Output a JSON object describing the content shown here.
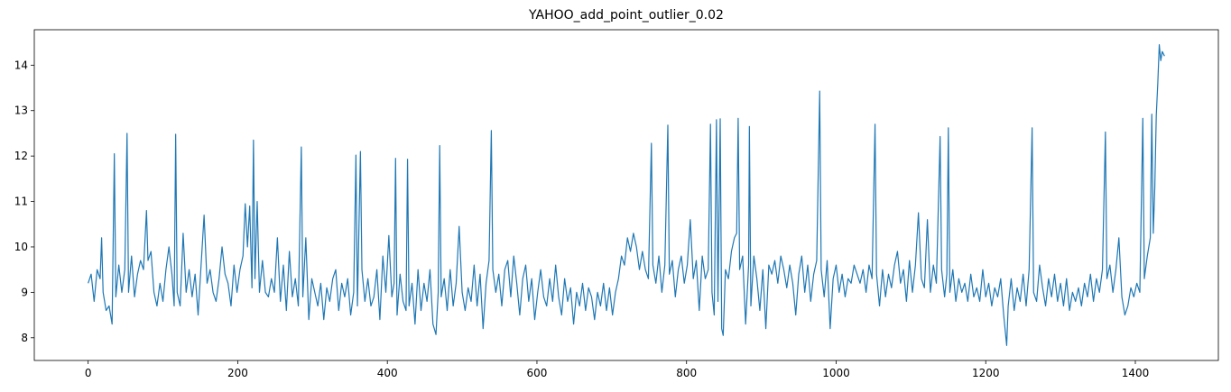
{
  "chart_data": {
    "type": "line",
    "title": "YAHOO_add_point_outlier_0.02",
    "x": [
      0,
      4,
      8,
      12,
      16,
      18,
      20,
      24,
      28,
      32,
      35,
      37,
      41,
      45,
      49,
      52,
      54,
      58,
      62,
      66,
      70,
      74,
      78,
      80,
      84,
      88,
      92,
      96,
      100,
      104,
      108,
      112,
      115,
      117,
      119,
      123,
      127,
      131,
      135,
      139,
      143,
      147,
      151,
      155,
      159,
      163,
      167,
      171,
      175,
      179,
      183,
      187,
      191,
      195,
      199,
      203,
      207,
      210,
      213,
      216,
      219,
      221,
      223,
      226,
      229,
      233,
      237,
      241,
      245,
      249,
      253,
      257,
      261,
      265,
      269,
      273,
      277,
      281,
      285,
      287,
      291,
      295,
      299,
      303,
      307,
      311,
      315,
      319,
      323,
      327,
      331,
      335,
      339,
      343,
      347,
      351,
      355,
      358,
      360,
      364,
      366,
      370,
      374,
      378,
      382,
      386,
      390,
      394,
      398,
      402,
      406,
      409,
      411,
      413,
      417,
      421,
      425,
      427,
      429,
      433,
      437,
      441,
      445,
      449,
      453,
      457,
      461,
      465,
      468,
      470,
      472,
      476,
      480,
      484,
      488,
      492,
      496,
      500,
      504,
      508,
      512,
      516,
      520,
      524,
      528,
      532,
      536,
      539,
      541,
      545,
      549,
      553,
      557,
      561,
      565,
      569,
      573,
      577,
      581,
      585,
      589,
      593,
      597,
      601,
      605,
      609,
      613,
      617,
      621,
      625,
      629,
      633,
      637,
      641,
      645,
      649,
      653,
      657,
      661,
      665,
      669,
      673,
      677,
      681,
      685,
      689,
      693,
      697,
      701,
      705,
      709,
      713,
      717,
      721,
      725,
      729,
      733,
      737,
      741,
      745,
      749,
      753,
      755,
      759,
      763,
      767,
      771,
      775,
      777,
      781,
      785,
      789,
      793,
      797,
      801,
      805,
      809,
      813,
      817,
      821,
      825,
      829,
      832,
      834,
      837,
      840,
      842,
      845,
      847,
      849,
      852,
      856,
      860,
      864,
      867,
      869,
      871,
      875,
      879,
      883,
      884,
      886,
      890,
      894,
      898,
      902,
      906,
      910,
      914,
      918,
      922,
      926,
      930,
      934,
      938,
      942,
      946,
      950,
      954,
      958,
      962,
      966,
      970,
      974,
      978,
      980,
      984,
      988,
      992,
      996,
      1000,
      1004,
      1008,
      1012,
      1016,
      1020,
      1024,
      1028,
      1032,
      1036,
      1040,
      1044,
      1048,
      1052,
      1054,
      1058,
      1062,
      1066,
      1070,
      1074,
      1078,
      1082,
      1086,
      1090,
      1094,
      1098,
      1102,
      1106,
      1110,
      1114,
      1118,
      1122,
      1126,
      1130,
      1134,
      1139,
      1141,
      1145,
      1148,
      1150,
      1152,
      1156,
      1160,
      1164,
      1168,
      1172,
      1176,
      1180,
      1184,
      1188,
      1192,
      1196,
      1200,
      1204,
      1208,
      1212,
      1216,
      1220,
      1224,
      1228,
      1230,
      1234,
      1238,
      1242,
      1246,
      1250,
      1254,
      1258,
      1262,
      1264,
      1268,
      1272,
      1276,
      1280,
      1284,
      1288,
      1292,
      1296,
      1300,
      1304,
      1308,
      1312,
      1316,
      1320,
      1324,
      1328,
      1332,
      1336,
      1340,
      1344,
      1348,
      1352,
      1356,
      1360,
      1362,
      1366,
      1370,
      1374,
      1378,
      1382,
      1386,
      1390,
      1394,
      1398,
      1402,
      1406,
      1410,
      1412,
      1416,
      1420,
      1422,
      1424,
      1426,
      1428,
      1430,
      1432,
      1434,
      1436,
      1439
    ],
    "series": [
      {
        "color": "#1f77b4",
        "values": [
          9.2,
          9.4,
          8.8,
          9.5,
          9.3,
          10.2,
          9.0,
          8.6,
          8.7,
          8.3,
          12.05,
          8.9,
          9.6,
          9.0,
          9.5,
          12.5,
          9.0,
          9.8,
          8.9,
          9.4,
          9.7,
          9.5,
          10.8,
          9.7,
          9.9,
          9.0,
          8.7,
          9.2,
          8.8,
          9.5,
          10.0,
          9.4,
          8.7,
          12.48,
          9.0,
          8.7,
          10.3,
          9.0,
          9.5,
          8.9,
          9.4,
          8.5,
          9.6,
          10.7,
          9.2,
          9.5,
          9.0,
          8.8,
          9.3,
          10.0,
          9.4,
          9.2,
          8.7,
          9.6,
          9.0,
          9.5,
          9.8,
          10.95,
          10.0,
          10.9,
          9.1,
          12.35,
          9.3,
          11.0,
          9.0,
          9.7,
          9.0,
          8.9,
          9.3,
          9.0,
          10.2,
          8.8,
          9.6,
          8.6,
          9.9,
          8.9,
          9.3,
          8.7,
          12.2,
          8.9,
          10.2,
          8.4,
          9.3,
          9.0,
          8.7,
          9.2,
          8.4,
          9.1,
          8.8,
          9.3,
          9.5,
          8.6,
          9.2,
          8.9,
          9.3,
          8.5,
          9.0,
          12.02,
          8.7,
          12.1,
          9.5,
          8.8,
          9.3,
          8.7,
          8.9,
          9.5,
          8.4,
          9.8,
          9.0,
          10.25,
          8.9,
          9.2,
          11.95,
          8.5,
          9.4,
          8.8,
          8.6,
          11.93,
          8.7,
          9.2,
          8.3,
          9.5,
          8.6,
          9.2,
          8.8,
          9.5,
          8.3,
          8.07,
          9.0,
          12.23,
          8.9,
          9.3,
          8.6,
          9.5,
          8.7,
          9.2,
          10.45,
          9.0,
          8.6,
          9.1,
          8.8,
          9.6,
          8.7,
          9.4,
          8.2,
          9.2,
          9.7,
          12.56,
          9.5,
          9.0,
          9.4,
          8.7,
          9.5,
          9.7,
          8.9,
          9.8,
          9.2,
          8.5,
          9.3,
          9.6,
          8.8,
          9.3,
          8.4,
          9.0,
          9.5,
          8.9,
          8.7,
          9.3,
          8.8,
          9.6,
          8.9,
          8.5,
          9.3,
          8.8,
          9.1,
          8.3,
          9.0,
          8.7,
          9.2,
          8.6,
          9.1,
          8.9,
          8.4,
          9.0,
          8.7,
          9.2,
          8.6,
          9.1,
          8.5,
          9.0,
          9.3,
          9.8,
          9.6,
          10.2,
          9.9,
          10.3,
          10.0,
          9.5,
          9.9,
          9.5,
          9.3,
          12.28,
          9.6,
          9.2,
          9.8,
          9.0,
          9.6,
          12.68,
          9.4,
          9.7,
          8.9,
          9.5,
          9.8,
          9.2,
          9.6,
          10.6,
          9.3,
          9.7,
          8.6,
          9.8,
          9.3,
          9.5,
          12.7,
          9.0,
          8.5,
          12.8,
          8.8,
          12.82,
          8.2,
          8.05,
          9.5,
          9.3,
          9.9,
          10.2,
          10.3,
          12.83,
          9.5,
          9.8,
          8.3,
          9.6,
          12.65,
          8.7,
          9.8,
          9.3,
          8.6,
          9.5,
          8.2,
          9.6,
          9.4,
          9.7,
          9.2,
          9.8,
          9.5,
          9.1,
          9.6,
          9.2,
          8.5,
          9.4,
          9.8,
          9.0,
          9.6,
          8.8,
          9.4,
          9.7,
          13.43,
          9.5,
          8.9,
          9.7,
          8.2,
          9.3,
          9.6,
          9.0,
          9.4,
          8.9,
          9.3,
          9.2,
          9.6,
          9.4,
          9.2,
          9.5,
          9.0,
          9.6,
          9.3,
          12.7,
          9.4,
          8.7,
          9.5,
          8.9,
          9.4,
          9.1,
          9.6,
          9.9,
          9.2,
          9.5,
          8.8,
          9.7,
          9.0,
          9.6,
          10.75,
          9.3,
          9.1,
          10.6,
          9.0,
          9.6,
          9.2,
          12.43,
          9.5,
          8.9,
          9.4,
          12.62,
          9.0,
          9.5,
          8.8,
          9.3,
          9.0,
          9.2,
          8.8,
          9.4,
          8.9,
          9.1,
          8.8,
          9.5,
          8.9,
          9.2,
          8.7,
          9.1,
          8.9,
          9.3,
          8.5,
          7.83,
          8.7,
          9.3,
          8.6,
          9.1,
          8.8,
          9.4,
          8.7,
          9.5,
          12.62,
          9.0,
          8.8,
          9.6,
          9.1,
          8.7,
          9.3,
          8.9,
          9.4,
          8.8,
          9.2,
          8.7,
          9.3,
          8.6,
          9.0,
          8.8,
          9.1,
          8.7,
          9.2,
          8.9,
          9.4,
          8.8,
          9.3,
          9.0,
          9.5,
          12.53,
          9.3,
          9.6,
          9.0,
          9.5,
          10.2,
          8.9,
          8.5,
          8.7,
          9.1,
          8.9,
          9.2,
          9.0,
          12.83,
          9.3,
          9.8,
          10.2,
          12.92,
          10.3,
          11.3,
          12.9,
          13.6,
          14.45,
          14.1,
          14.3,
          14.2
        ]
      }
    ],
    "xlim": [
      -72,
      1511
    ],
    "ylim": [
      7.5,
      14.78
    ],
    "xticks": [
      0,
      200,
      400,
      600,
      800,
      1000,
      1200,
      1400
    ],
    "yticks": [
      8,
      9,
      10,
      11,
      12,
      13,
      14
    ]
  }
}
